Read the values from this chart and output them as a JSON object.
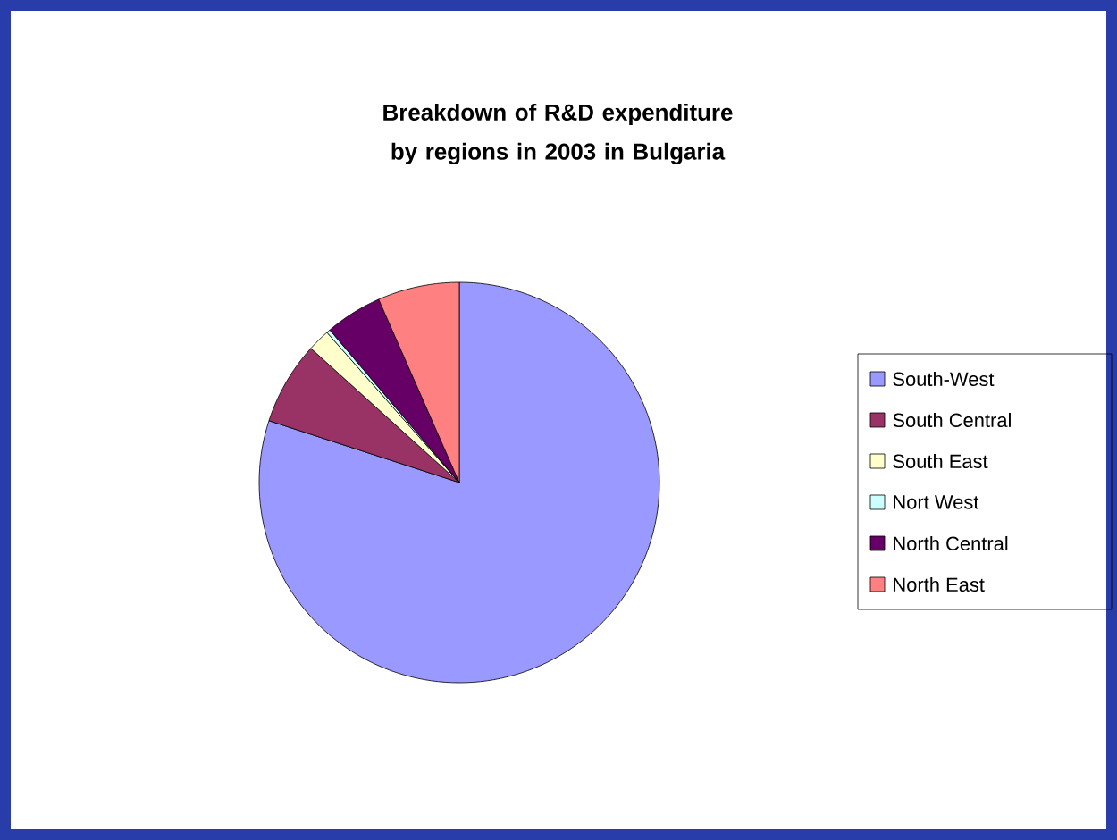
{
  "chart_data": {
    "type": "pie",
    "title": "Breakdown of R&D expenditure by regions in 2003 in Bulgaria",
    "categories": [
      "South-West",
      "South Central",
      "South East",
      "Nort West",
      "North Central",
      "North East"
    ],
    "values": [
      80,
      6.7,
      1.8,
      0.3,
      4.6,
      6.6
    ],
    "colors": [
      "#9999ff",
      "#993366",
      "#ffffcc",
      "#ccffff",
      "#660066",
      "#ff8080"
    ],
    "legend": "right"
  }
}
